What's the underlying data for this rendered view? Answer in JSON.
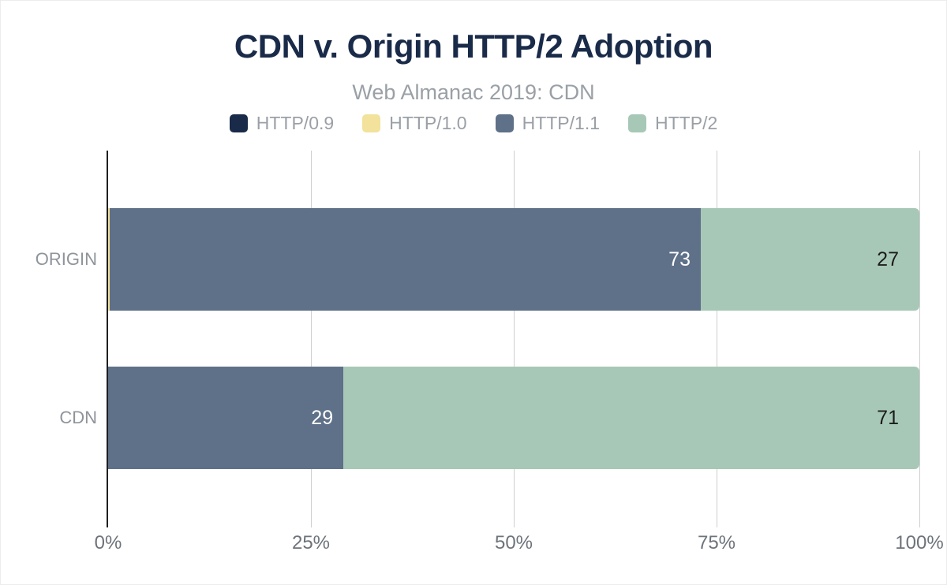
{
  "chart_data": {
    "type": "bar",
    "orientation": "horizontal",
    "stacked": true,
    "title": "CDN v. Origin HTTP/2 Adoption",
    "subtitle": "Web Almanac 2019: CDN",
    "categories": [
      "ORIGIN",
      "CDN"
    ],
    "series": [
      {
        "name": "HTTP/0.9",
        "color": "#1a2b49",
        "label_color": "#ffffff",
        "values": [
          0,
          0
        ],
        "labels": [
          "",
          ""
        ]
      },
      {
        "name": "HTTP/1.0",
        "color": "#f2e29b",
        "label_color": "#1c1c1c",
        "values": [
          0.2,
          0
        ],
        "labels": [
          "",
          ""
        ]
      },
      {
        "name": "HTTP/1.1",
        "color": "#5f7089",
        "label_color": "#ffffff",
        "values": [
          73,
          29
        ],
        "labels": [
          "73",
          "29"
        ]
      },
      {
        "name": "HTTP/2",
        "color": "#a7c8b7",
        "label_color": "#1c1c1c",
        "values": [
          27,
          71
        ],
        "labels": [
          "27",
          "71"
        ]
      }
    ],
    "x_axis": {
      "min": 0,
      "max": 100,
      "tick_values": [
        0,
        25,
        50,
        75,
        100
      ],
      "tick_labels": [
        "0%",
        "25%",
        "50%",
        "75%",
        "100%"
      ]
    },
    "legend_position": "top",
    "grid": "vertical"
  },
  "style": {
    "title_color": "#1a2b49",
    "subtitle_color": "#9aa0a6",
    "axis_label_color": "#6d737a",
    "category_label_color": "#8e949a",
    "gridline_color": "#cfcfcf",
    "axis_line_color": "#1f1f1f"
  }
}
